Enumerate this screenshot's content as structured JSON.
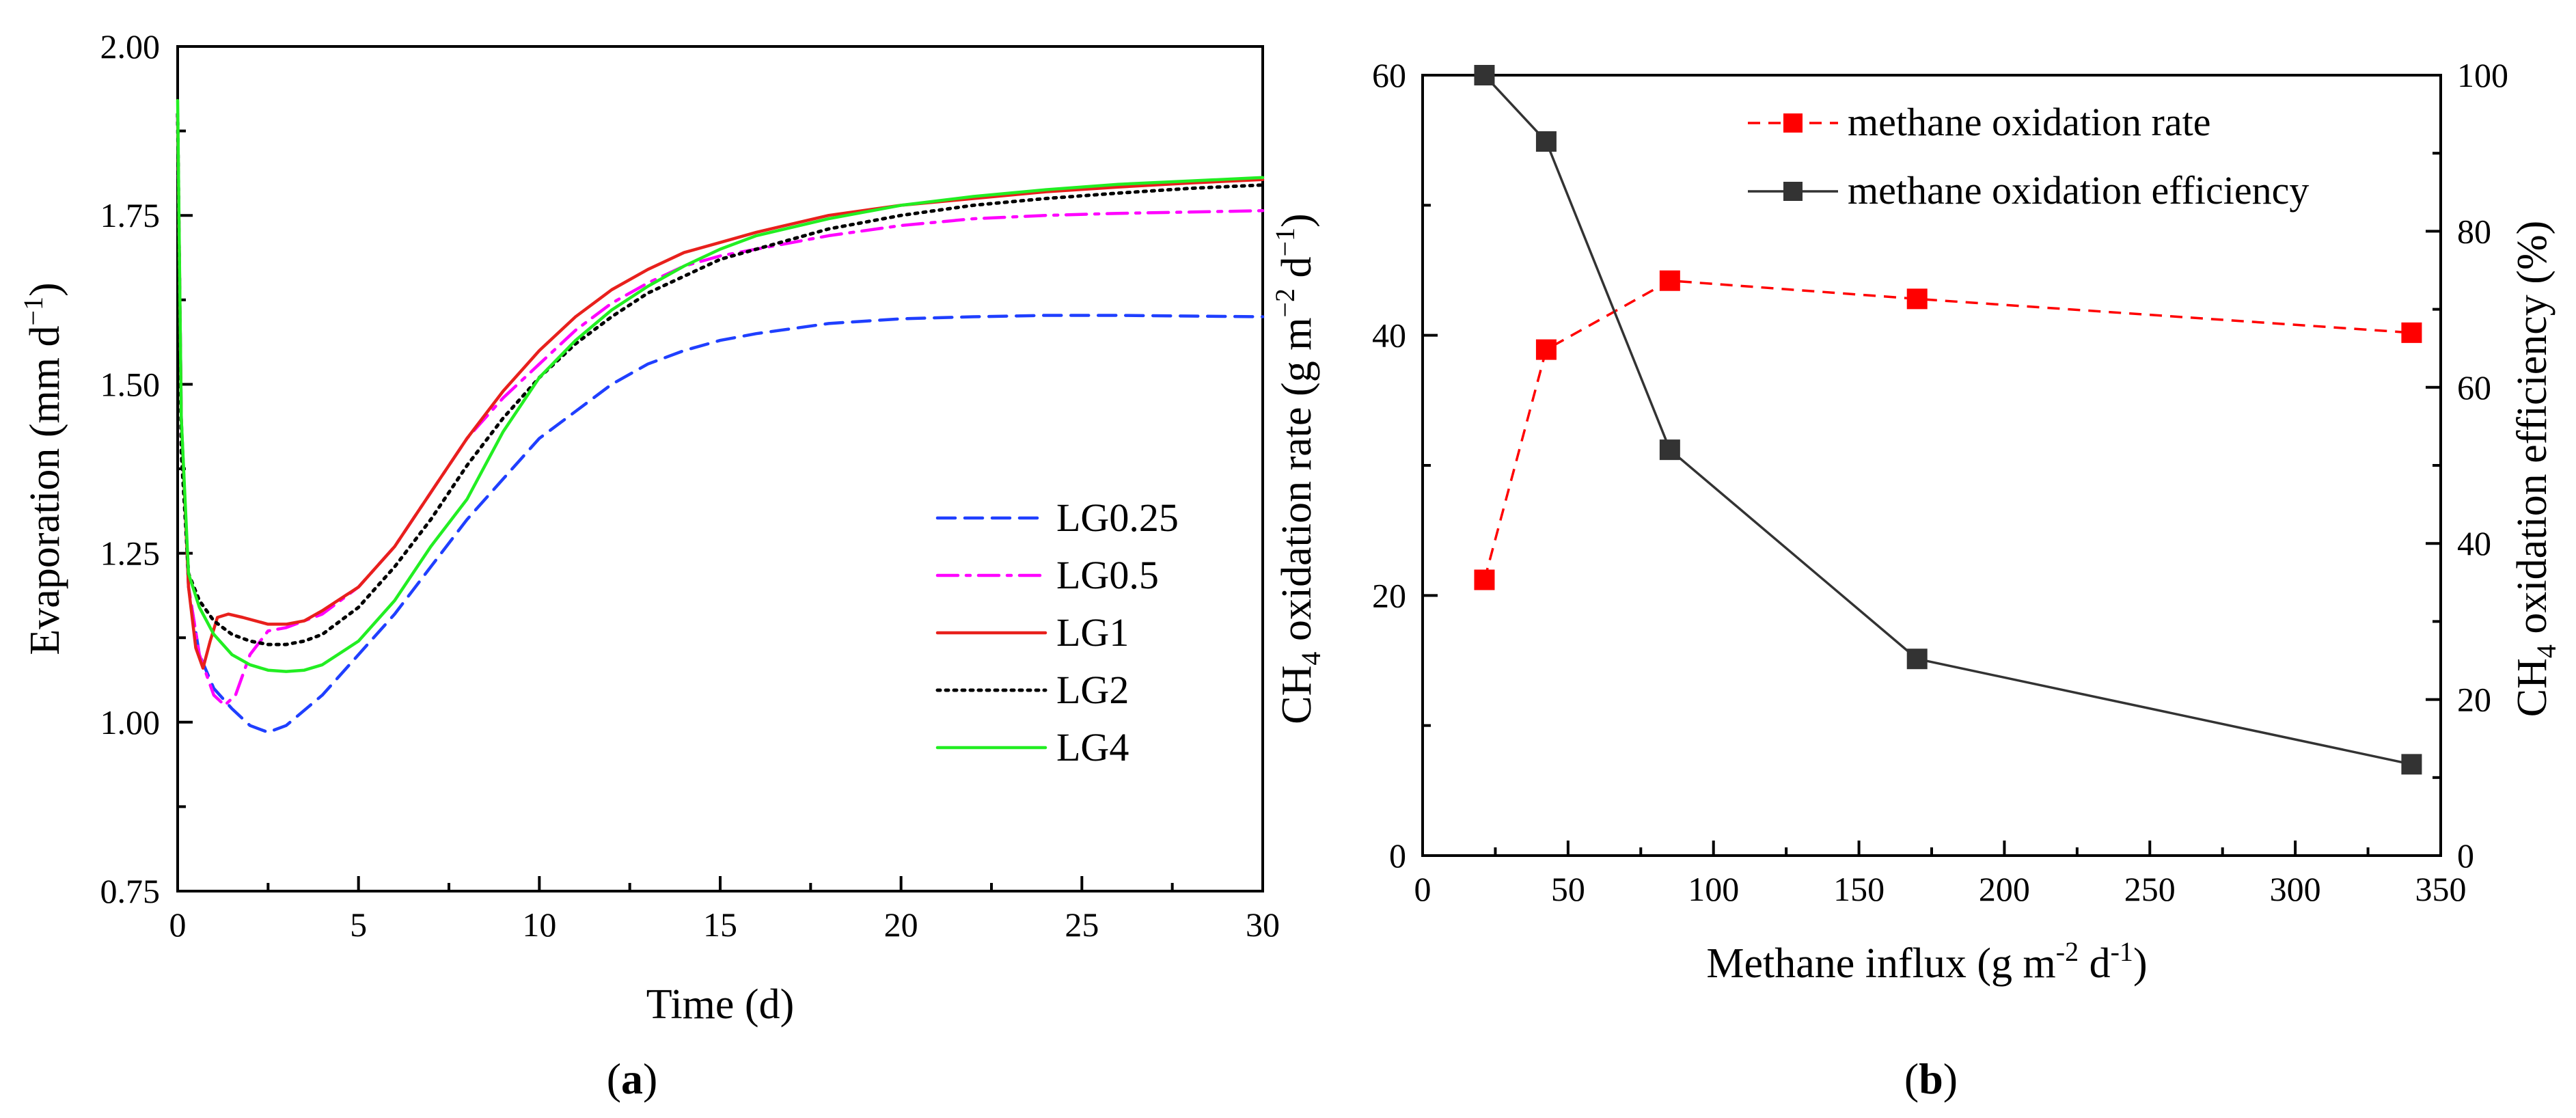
{
  "chart_data": [
    {
      "panel": "(a)",
      "panel_letter": "a",
      "type": "line",
      "xlabel": "Time (d)",
      "ylabel_main": "Evaporation (mm d",
      "ylabel_sup": "−1",
      "ylabel_close": ")",
      "xlim": [
        0,
        30
      ],
      "ylim": [
        0.75,
        2.0
      ],
      "xticks": [
        0,
        5,
        10,
        15,
        20,
        25,
        30
      ],
      "xtick_labels": [
        "0",
        "5",
        "10",
        "15",
        "20",
        "25",
        "30"
      ],
      "yticks": [
        0.75,
        1.0,
        1.25,
        1.5,
        1.75,
        2.0
      ],
      "ytick_labels": [
        "0.75",
        "1.00",
        "1.25",
        "1.50",
        "1.75",
        "2.00"
      ],
      "grid": false,
      "legend_position": "center-right",
      "series": [
        {
          "name": "LG0.25",
          "color": "#1f3fff",
          "dash": "dashed",
          "x": [
            0,
            0.1,
            0.3,
            0.6,
            1.0,
            1.5,
            2.0,
            2.5,
            3.0,
            4.0,
            5.0,
            6.0,
            7.0,
            8.0,
            9.0,
            10.0,
            11.0,
            12.0,
            13.0,
            14.0,
            15.0,
            16.0,
            18.0,
            20.0,
            22.0,
            24.0,
            26.0,
            28.0,
            30.0
          ],
          "y": [
            1.9,
            1.45,
            1.2,
            1.1,
            1.05,
            1.02,
            0.995,
            0.985,
            0.995,
            1.04,
            1.1,
            1.16,
            1.23,
            1.3,
            1.36,
            1.42,
            1.46,
            1.5,
            1.53,
            1.55,
            1.565,
            1.575,
            1.59,
            1.597,
            1.6,
            1.602,
            1.602,
            1.601,
            1.6
          ]
        },
        {
          "name": "LG0.5",
          "color": "#ff00ff",
          "dash": "dashdot",
          "x": [
            0,
            0.1,
            0.3,
            0.6,
            1.0,
            1.3,
            1.6,
            2.0,
            2.5,
            3.0,
            4.0,
            5.0,
            6.0,
            7.0,
            8.0,
            9.0,
            10.0,
            11.0,
            12.0,
            13.0,
            14.0,
            15.0,
            16.0,
            18.0,
            20.0,
            22.0,
            24.0,
            26.0,
            28.0,
            30.0
          ],
          "y": [
            1.9,
            1.45,
            1.2,
            1.1,
            1.04,
            1.025,
            1.04,
            1.1,
            1.135,
            1.14,
            1.16,
            1.2,
            1.26,
            1.34,
            1.42,
            1.48,
            1.53,
            1.58,
            1.62,
            1.65,
            1.675,
            1.69,
            1.7,
            1.72,
            1.735,
            1.745,
            1.75,
            1.753,
            1.755,
            1.757
          ]
        },
        {
          "name": "LG1",
          "color": "#e8201c",
          "dash": "solid",
          "x": [
            0,
            0.1,
            0.3,
            0.5,
            0.7,
            0.9,
            1.1,
            1.4,
            1.8,
            2.5,
            3.0,
            3.5,
            4.0,
            5.0,
            6.0,
            7.0,
            8.0,
            9.0,
            10.0,
            11.0,
            12.0,
            13.0,
            14.0,
            15.0,
            16.0,
            18.0,
            20.0,
            22.0,
            24.0,
            26.0,
            28.0,
            30.0
          ],
          "y": [
            1.9,
            1.45,
            1.2,
            1.11,
            1.08,
            1.12,
            1.155,
            1.16,
            1.155,
            1.145,
            1.145,
            1.15,
            1.165,
            1.2,
            1.26,
            1.34,
            1.42,
            1.49,
            1.55,
            1.6,
            1.64,
            1.67,
            1.695,
            1.71,
            1.725,
            1.75,
            1.765,
            1.775,
            1.785,
            1.792,
            1.798,
            1.803
          ]
        },
        {
          "name": "LG2",
          "color": "#000000",
          "dash": "dotted",
          "x": [
            0,
            0.1,
            0.3,
            0.6,
            1.0,
            1.5,
            2.0,
            2.5,
            3.0,
            3.5,
            4.0,
            5.0,
            6.0,
            7.0,
            8.0,
            9.0,
            10.0,
            11.0,
            12.0,
            13.0,
            14.0,
            15.0,
            16.0,
            18.0,
            20.0,
            22.0,
            24.0,
            26.0,
            28.0,
            30.0
          ],
          "y": [
            1.9,
            1.4,
            1.22,
            1.18,
            1.15,
            1.13,
            1.12,
            1.115,
            1.115,
            1.12,
            1.13,
            1.17,
            1.23,
            1.3,
            1.38,
            1.45,
            1.51,
            1.56,
            1.6,
            1.635,
            1.66,
            1.685,
            1.7,
            1.73,
            1.75,
            1.765,
            1.775,
            1.783,
            1.79,
            1.795
          ]
        },
        {
          "name": "LG4",
          "color": "#22ee22",
          "dash": "solid",
          "x": [
            0,
            0.1,
            0.3,
            0.6,
            1.0,
            1.5,
            2.0,
            2.5,
            3.0,
            3.5,
            4.0,
            5.0,
            6.0,
            7.0,
            8.0,
            8.5,
            9.0,
            9.5,
            10.0,
            11.0,
            12.0,
            13.0,
            14.0,
            15.0,
            16.0,
            18.0,
            20.0,
            22.0,
            24.0,
            26.0,
            28.0,
            30.0
          ],
          "y": [
            1.92,
            1.45,
            1.22,
            1.17,
            1.13,
            1.1,
            1.085,
            1.077,
            1.075,
            1.077,
            1.085,
            1.12,
            1.18,
            1.26,
            1.33,
            1.38,
            1.43,
            1.47,
            1.51,
            1.565,
            1.61,
            1.645,
            1.675,
            1.7,
            1.72,
            1.745,
            1.765,
            1.778,
            1.788,
            1.796,
            1.801,
            1.806
          ]
        }
      ]
    },
    {
      "panel": "(b)",
      "panel_letter": "b",
      "type": "line",
      "xlabel_main": "Methane influx (g m",
      "xlabel_sup1": "-2",
      "xlabel_mid": " d",
      "xlabel_sup2": "-1",
      "xlabel_close": ")",
      "ylabel_left_ch": "CH",
      "ylabel_left_sub": "4",
      "ylabel_left_main": " oxidation rate (g m",
      "ylabel_left_sup1": "−2",
      "ylabel_left_mid": " d",
      "ylabel_left_sup2": "−1",
      "ylabel_left_close": ")",
      "ylabel_right_ch": "CH",
      "ylabel_right_sub": "4",
      "ylabel_right_main": " oxidation efficiency (%)",
      "xlim": [
        0,
        350
      ],
      "ylim_left": [
        0,
        60
      ],
      "ylim_right": [
        0,
        100
      ],
      "xticks": [
        0,
        50,
        100,
        150,
        200,
        250,
        300,
        350
      ],
      "xtick_labels": [
        "0",
        "50",
        "100",
        "150",
        "200",
        "250",
        "300",
        "350"
      ],
      "yticks_left": [
        0,
        20,
        40,
        60
      ],
      "ytick_labels_left": [
        "0",
        "20",
        "40",
        "60"
      ],
      "yticks_right": [
        0,
        20,
        40,
        60,
        80,
        100
      ],
      "ytick_labels_right": [
        "0",
        "20",
        "40",
        "60",
        "80",
        "100"
      ],
      "grid": false,
      "legend_position": "top-right",
      "series": [
        {
          "name": "methane oxidation rate",
          "axis": "left",
          "color": "#ff0000",
          "dash": "dashed",
          "x": [
            21.25,
            42.5,
            85,
            170,
            340
          ],
          "y": [
            21.2,
            38.9,
            44.2,
            42.8,
            40.2
          ]
        },
        {
          "name": "methane oxidation efficiency",
          "axis": "right",
          "color": "#333333",
          "dash": "solid",
          "x": [
            21.25,
            42.5,
            85,
            170,
            340
          ],
          "y": [
            100,
            91.5,
            52.0,
            25.2,
            11.7
          ]
        }
      ]
    }
  ]
}
